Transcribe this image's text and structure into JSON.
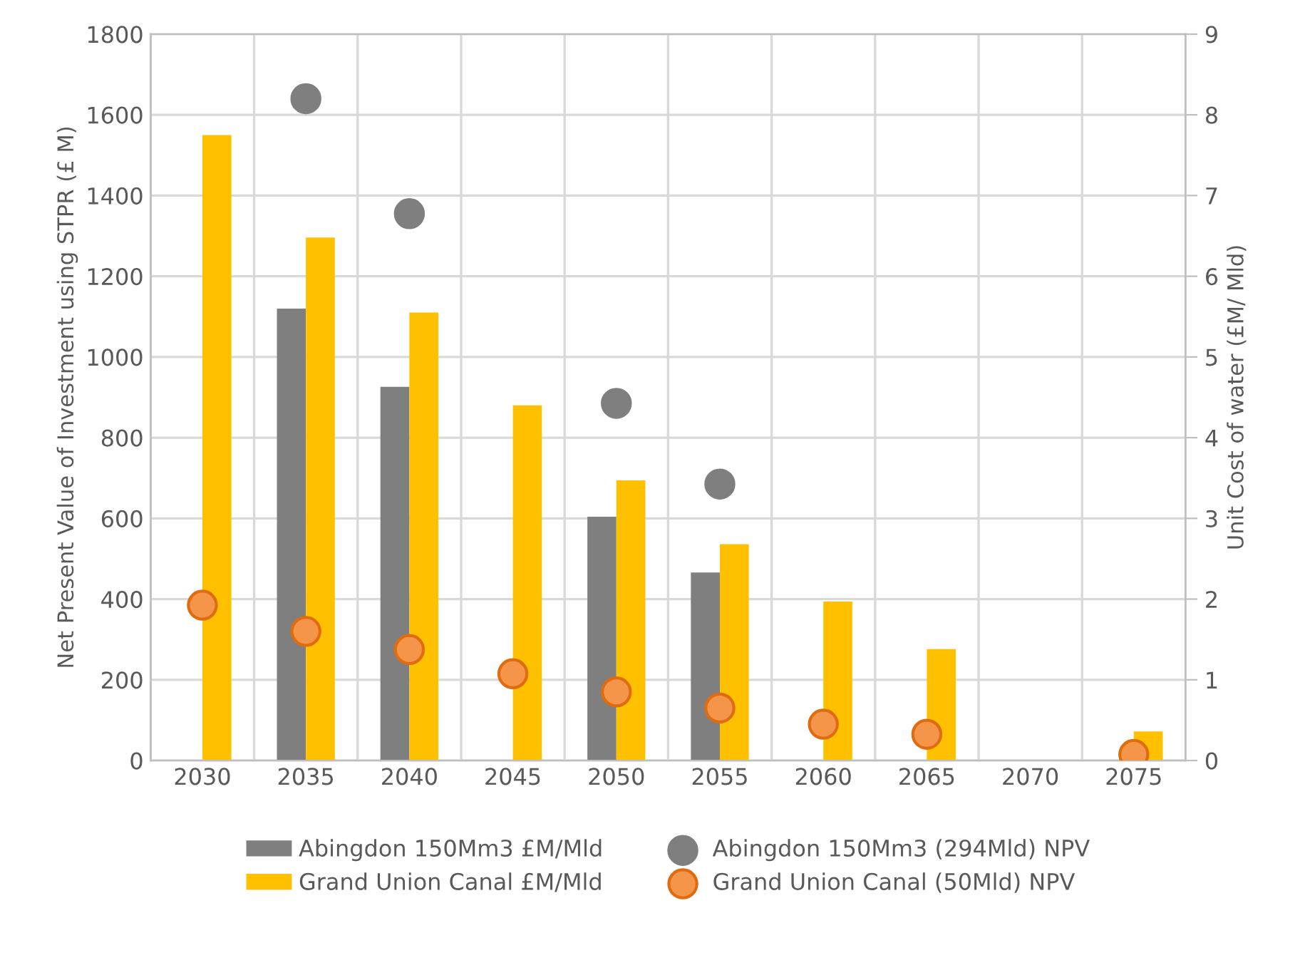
{
  "chart_data": {
    "type": "bar",
    "ylabel": "Net Present Value of Investment using STPR (£ M)",
    "y2label": "Unit Cost of water (£M/ Mld)",
    "categories": [
      "2030",
      "2035",
      "2040",
      "2045",
      "2050",
      "2055",
      "2060",
      "2065",
      "2070",
      "2075"
    ],
    "series": [
      {
        "name": "Abingdon 150Mm3 £M/Mld",
        "axis": "y2",
        "color": "#7f7f7f",
        "values": [
          null,
          5.6,
          4.63,
          null,
          3.02,
          2.33,
          null,
          null,
          null,
          null
        ]
      },
      {
        "name": "Grand Union Canal £M/Mld",
        "axis": "y2",
        "color": "#ffc000",
        "values": [
          7.75,
          6.48,
          5.55,
          4.4,
          3.47,
          2.68,
          1.97,
          1.38,
          null,
          0.36
        ]
      },
      {
        "name": "Abingdon 150Mm3 (294Mld) NPV",
        "type": "scatter",
        "axis": "y",
        "color": "#7f7f7f",
        "values": [
          null,
          1640,
          1355,
          null,
          885,
          685,
          null,
          null,
          null,
          null
        ]
      },
      {
        "name": "Grand Union Canal (50Mld) NPV",
        "type": "scatter",
        "axis": "y",
        "color": "#f4954a",
        "values": [
          385,
          320,
          275,
          215,
          170,
          130,
          90,
          65,
          null,
          15
        ]
      }
    ],
    "ylim": [
      0,
      1800
    ],
    "yticks": [
      0,
      200,
      400,
      600,
      800,
      1000,
      1200,
      1400,
      1600,
      1800
    ],
    "y2lim": [
      0,
      9
    ],
    "y2ticks": [
      0,
      1,
      2,
      3,
      4,
      5,
      6,
      7,
      8,
      9
    ],
    "grid": true,
    "legend": "bottom",
    "marker": "circle"
  }
}
